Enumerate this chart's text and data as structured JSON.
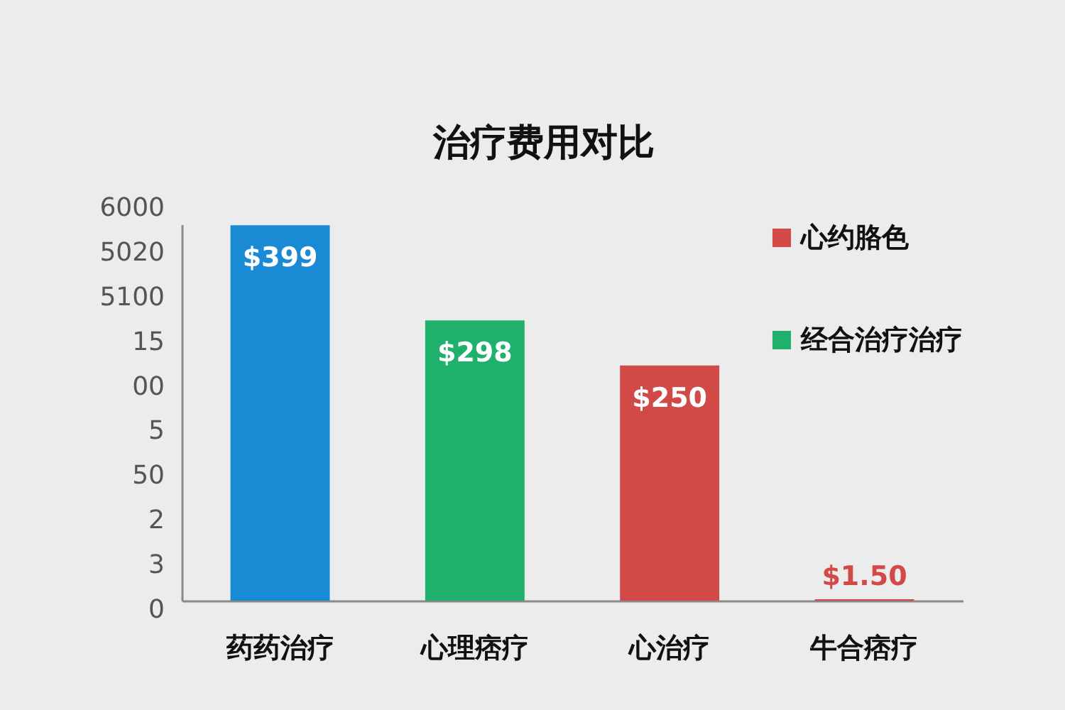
{
  "chart_data": {
    "type": "bar",
    "title": "治疗费用对比",
    "categories": [
      "药药治疗",
      "心理痞疗",
      "心治疗",
      "牛合痞疗"
    ],
    "series": [
      {
        "name": "心约胳色",
        "color": "#d24a48",
        "values": [
          null,
          null,
          250,
          1.5
        ],
        "value_labels": [
          null,
          null,
          "$250",
          "$1.50"
        ]
      },
      {
        "name": "经合治疗治疗",
        "color": "#1fb06b",
        "values": [
          null,
          298,
          null,
          null
        ],
        "value_labels": [
          null,
          "$298",
          null,
          null
        ]
      },
      {
        "color": "#1a8ad4",
        "values": [
          399,
          null,
          null,
          null
        ],
        "value_labels": [
          "$399",
          null,
          null,
          null
        ]
      }
    ],
    "annotations": [
      "6000",
      "5020",
      "5100",
      "15",
      "00",
      "5",
      "50",
      "2",
      "3",
      "0"
    ],
    "tick_labels": "x",
    "legend": "top right"
  }
}
